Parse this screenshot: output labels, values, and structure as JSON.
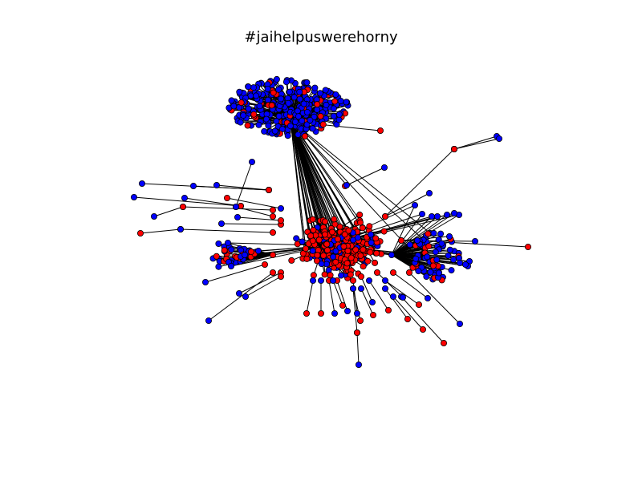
{
  "title": "#jaihelpuswerehorny",
  "colors": {
    "background": "#ffffff",
    "edge": "#000000",
    "node_outline": "#000000",
    "group_a": "#0000ff",
    "group_b": "#ff0000"
  },
  "legend": "none",
  "axes": "hidden"
}
